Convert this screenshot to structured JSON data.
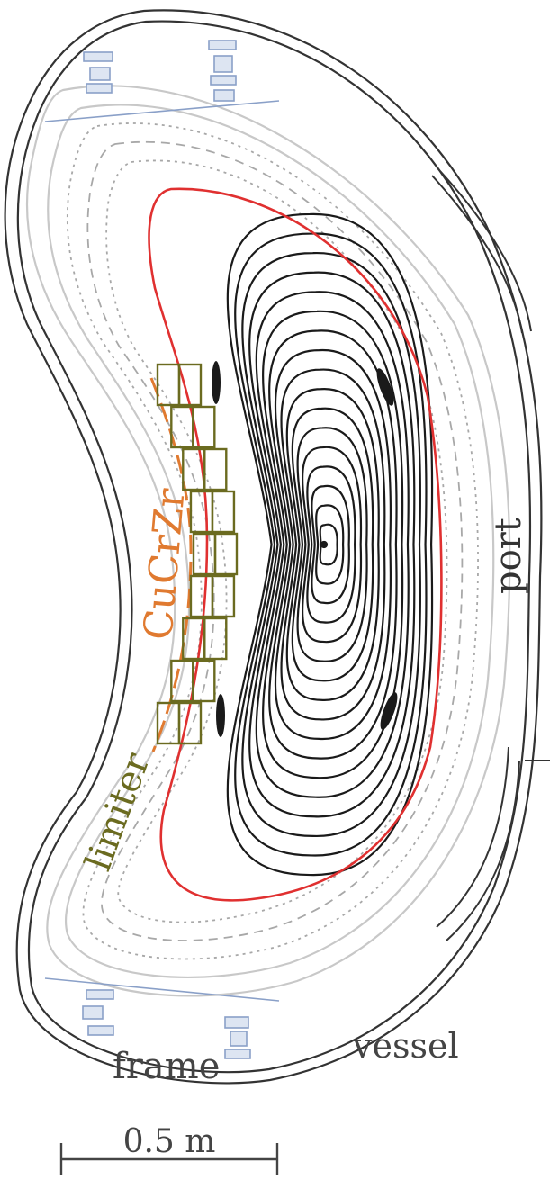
{
  "labels": {
    "cucrzr": "CuCrZr",
    "port": "port",
    "limiter": "limiter",
    "frame": "frame",
    "vessel": "vessel",
    "scale": "0.5 m"
  },
  "colors": {
    "separatrix": "#e03030",
    "flux_surface": "#1a1a1a",
    "scrape_off": "#c8c8c8",
    "cucrzr": "#e07a30",
    "limiter": "#6b6b20",
    "coil": "#8aa0c8",
    "vessel": "#333333",
    "scale_bar": "#444444"
  },
  "flux_surfaces": {
    "closed_count": 17,
    "scrape_off_count": 5
  }
}
